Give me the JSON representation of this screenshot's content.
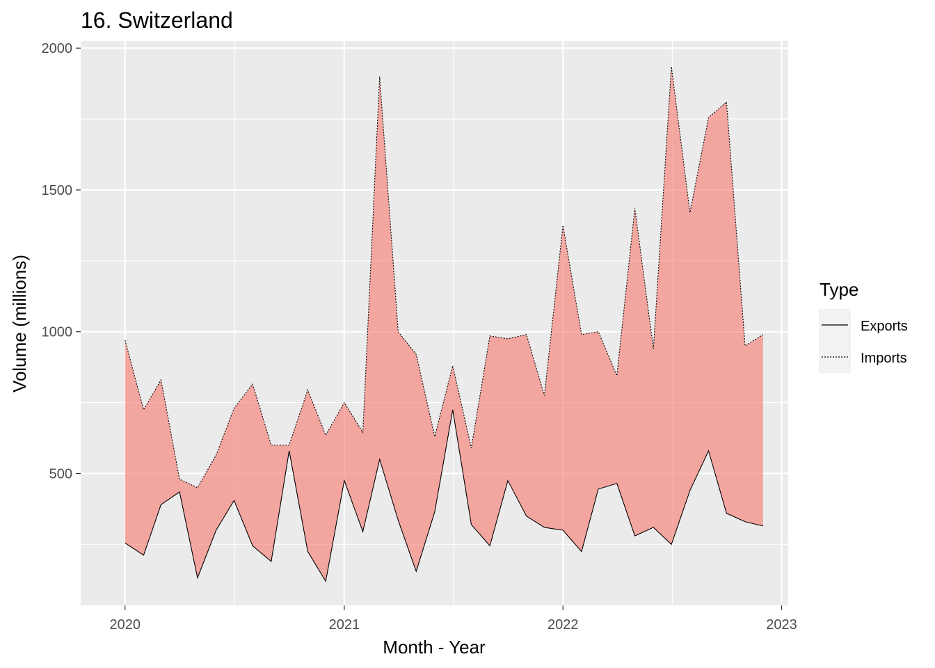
{
  "chart_data": {
    "type": "area",
    "title": "16. Switzerland",
    "xlabel": "Month - Year",
    "ylabel": "Volume (millions)",
    "xlim": [
      "2019-10-19",
      "2023-01-12"
    ],
    "ylim": [
      35,
      2025
    ],
    "x_ticks": [
      "2020-01-01",
      "2021-01-01",
      "2022-01-01",
      "2023-01-01"
    ],
    "x_tick_labels": [
      "2020",
      "2021",
      "2022",
      "2023"
    ],
    "y_ticks": [
      500,
      1000,
      1500,
      2000
    ],
    "y_tick_labels": [
      "500",
      "1000",
      "1500",
      "2000"
    ],
    "grid": true,
    "legend": {
      "title": "Type",
      "position": "right",
      "entries": [
        {
          "label": "Exports",
          "linetype": "solid"
        },
        {
          "label": "Imports",
          "linetype": "dashed"
        }
      ]
    },
    "fill_color": "#F8766D",
    "x": [
      "2020-01",
      "2020-02",
      "2020-03",
      "2020-04",
      "2020-05",
      "2020-06",
      "2020-07",
      "2020-08",
      "2020-09",
      "2020-10",
      "2020-11",
      "2020-12",
      "2021-01",
      "2021-02",
      "2021-03",
      "2021-04",
      "2021-05",
      "2021-06",
      "2021-07",
      "2021-08",
      "2021-09",
      "2021-10",
      "2021-11",
      "2021-12",
      "2022-01",
      "2022-02",
      "2022-03",
      "2022-04",
      "2022-05",
      "2022-06",
      "2022-07",
      "2022-08",
      "2022-09",
      "2022-10",
      "2022-11",
      "2022-12"
    ],
    "series": [
      {
        "name": "Exports",
        "linetype": "solid",
        "values": [
          255,
          212,
          390,
          435,
          132,
          300,
          405,
          245,
          190,
          580,
          225,
          120,
          475,
          295,
          550,
          335,
          155,
          365,
          725,
          320,
          245,
          475,
          350,
          310,
          300,
          225,
          445,
          465,
          280,
          310,
          250,
          440,
          580,
          360,
          330,
          315
        ]
      },
      {
        "name": "Imports",
        "linetype": "dashed",
        "values": [
          970,
          725,
          830,
          480,
          450,
          565,
          730,
          815,
          600,
          600,
          795,
          635,
          750,
          645,
          1900,
          1000,
          920,
          630,
          880,
          590,
          985,
          975,
          990,
          775,
          1375,
          990,
          1000,
          845,
          1435,
          940,
          1935,
          1420,
          1755,
          1810,
          950,
          990
        ]
      }
    ]
  }
}
